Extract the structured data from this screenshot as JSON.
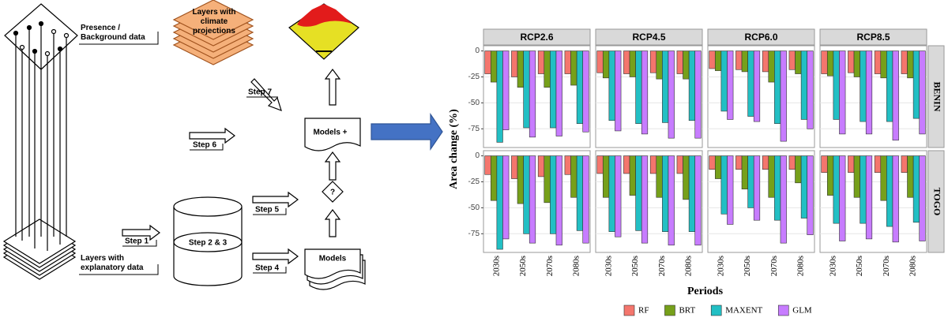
{
  "diagram": {
    "presence": "Presence / Background data",
    "climate": "Layers with climate projections",
    "step7": "Step 7",
    "step6": "Step 6",
    "models_plus": "Models +",
    "question": "?",
    "step5": "Step 5",
    "step1": "Step 1",
    "step23": "Step 2 & 3",
    "explanatory": "Layers with explanatory data",
    "step4": "Step 4",
    "models": "Models"
  },
  "chart_data": {
    "type": "bar",
    "ylabel": "Area change (%)",
    "xlabel": "Periods",
    "columns": [
      "RCP2.6",
      "RCP4.5",
      "RCP6.0",
      "RCP8.5"
    ],
    "rows": [
      "BENIN",
      "TOGO"
    ],
    "categories": [
      "2030s",
      "2050s",
      "2070s",
      "2080s"
    ],
    "ylim": [
      -93,
      5
    ],
    "yticks": [
      0,
      -25,
      -50,
      -75
    ],
    "grid": true,
    "legend": "bottom",
    "series": [
      {
        "name": "RF",
        "color": "#f4766d",
        "values": [
          [
            [
              -22,
              -25,
              -22,
              -22
            ],
            [
              -21,
              -22,
              -21,
              -22
            ],
            [
              -17,
              -18,
              -20,
              -18
            ],
            [
              -22,
              -21,
              -22,
              -22
            ]
          ],
          [
            [
              -18,
              -22,
              -20,
              -18
            ],
            [
              -17,
              -17,
              -17,
              -17
            ],
            [
              -13,
              -13,
              -13,
              -13
            ],
            [
              -16,
              -16,
              -16,
              -16
            ]
          ]
        ]
      },
      {
        "name": "BRT",
        "color": "#76a01a",
        "values": [
          [
            [
              -30,
              -35,
              -35,
              -33
            ],
            [
              -26,
              -25,
              -27,
              -27
            ],
            [
              -19,
              -20,
              -30,
              -22
            ],
            [
              -24,
              -25,
              -26,
              -26
            ]
          ],
          [
            [
              -43,
              -46,
              -45,
              -40
            ],
            [
              -40,
              -38,
              -40,
              -42
            ],
            [
              -22,
              -32,
              -40,
              -26
            ],
            [
              -38,
              -40,
              -43,
              -40
            ]
          ]
        ]
      },
      {
        "name": "MAXENT",
        "color": "#22bfc4",
        "values": [
          [
            [
              -88,
              -74,
              -74,
              -70
            ],
            [
              -67,
              -70,
              -69,
              -67
            ],
            [
              -58,
              -63,
              -70,
              -66
            ],
            [
              -66,
              -68,
              -68,
              -65
            ]
          ],
          [
            [
              -90,
              -75,
              -75,
              -72
            ],
            [
              -73,
              -72,
              -73,
              -73
            ],
            [
              -56,
              -50,
              -62,
              -60
            ],
            [
              -65,
              -65,
              -68,
              -64
            ]
          ]
        ]
      },
      {
        "name": "GLM",
        "color": "#c77cff",
        "values": [
          [
            [
              -76,
              -83,
              -82,
              -78
            ],
            [
              -77,
              -80,
              -84,
              -84
            ],
            [
              -66,
              -68,
              -87,
              -75
            ],
            [
              -80,
              -80,
              -86,
              -80
            ]
          ],
          [
            [
              -80,
              -84,
              -86,
              -84
            ],
            [
              -78,
              -84,
              -86,
              -86
            ],
            [
              -66,
              -62,
              -84,
              -76
            ],
            [
              -82,
              -80,
              -83,
              -82
            ]
          ]
        ]
      }
    ]
  }
}
